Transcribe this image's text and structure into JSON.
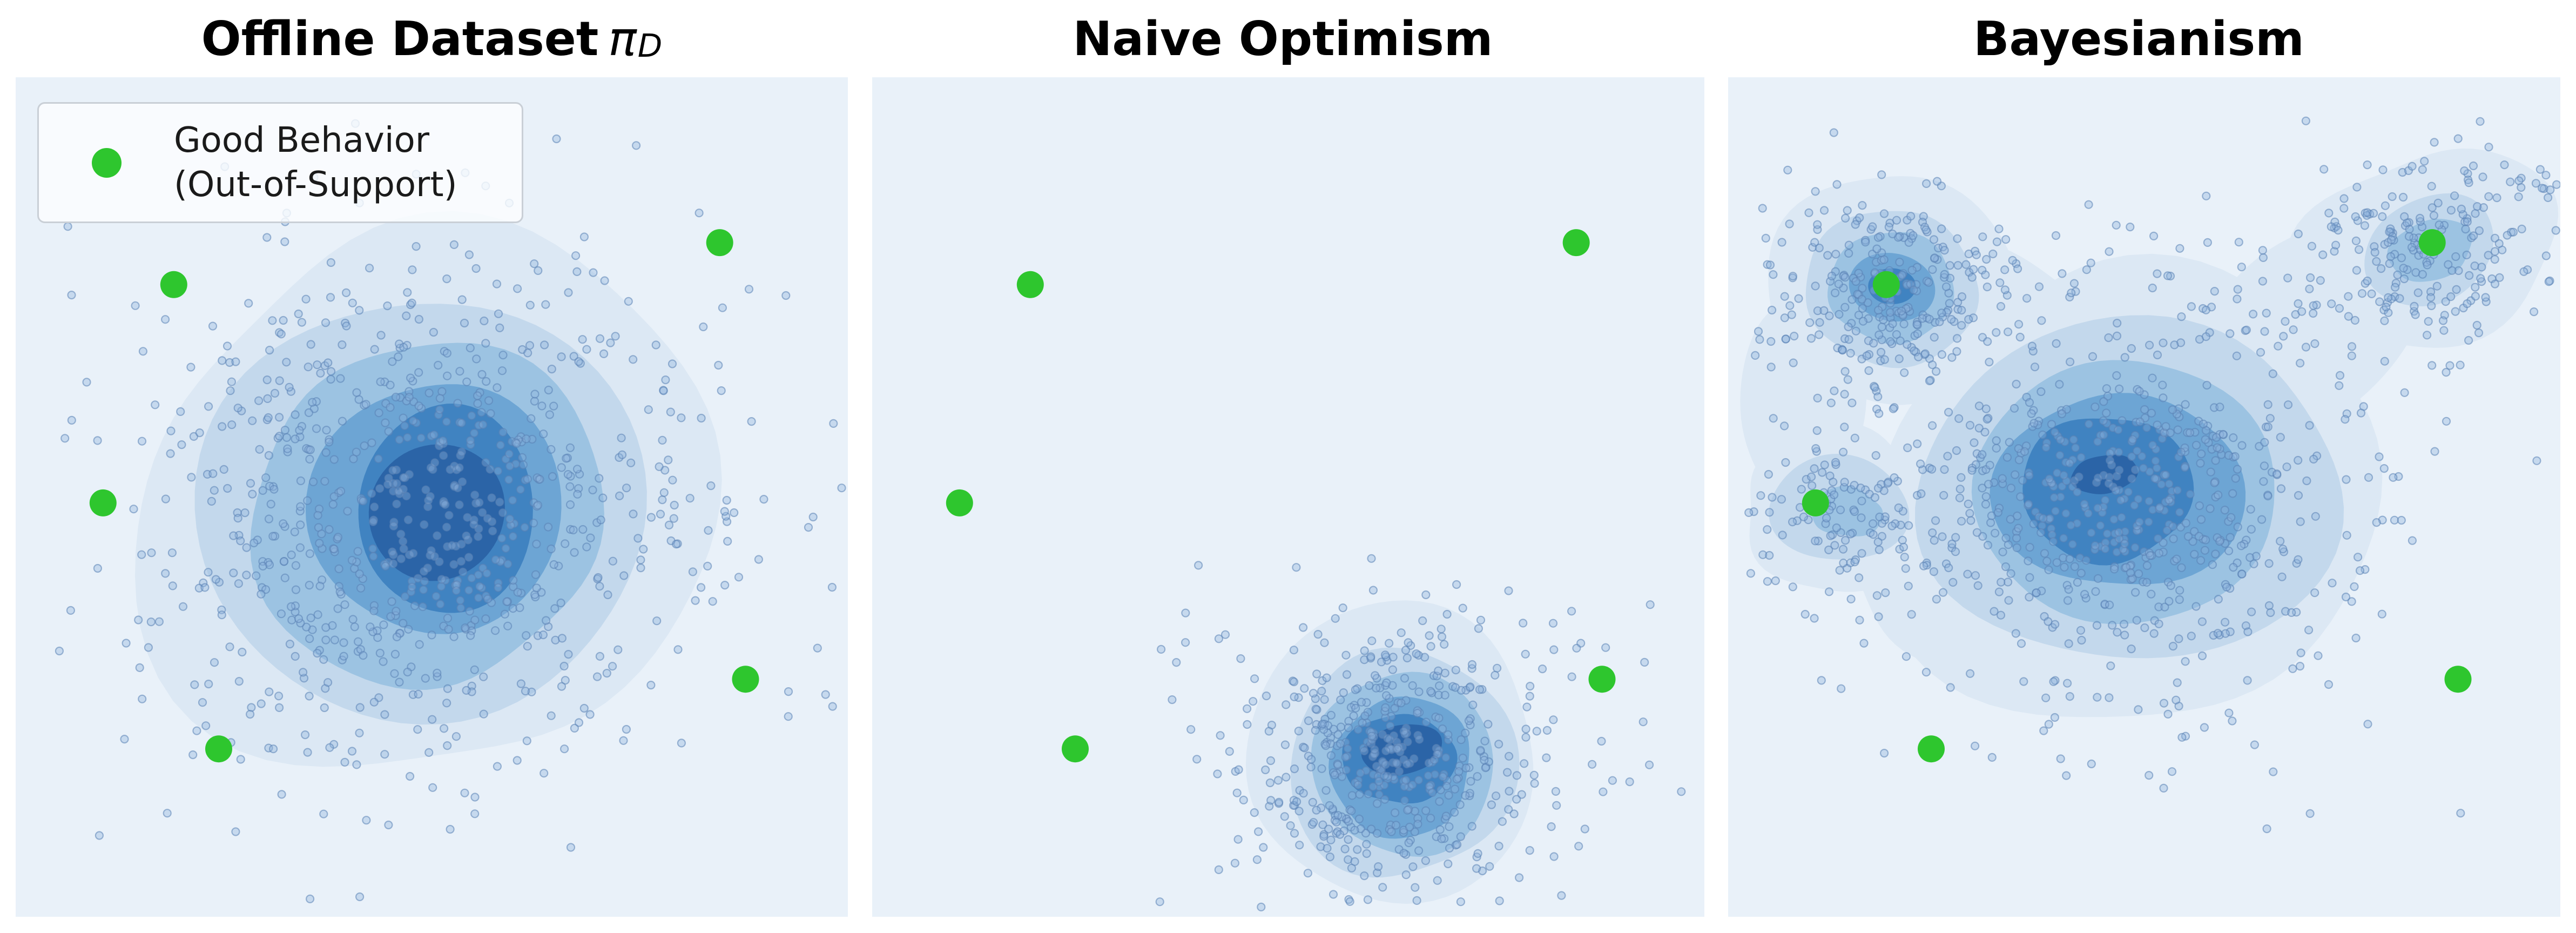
{
  "titles": [
    {
      "text": "Offline Dataset",
      "math": "π",
      "sub": "D"
    },
    {
      "text": "Naive Optimism",
      "math": "",
      "sub": ""
    },
    {
      "text": "Bayesianism",
      "math": "",
      "sub": ""
    }
  ],
  "legend": {
    "line1": "Good Behavior",
    "line2": "(Out-of-Support)",
    "marker_color": "#2ec62e"
  },
  "colors": {
    "figure_bg": "#ffffff",
    "panel_bg": "#e9f1f9",
    "contour_levels": [
      "#dce8f4",
      "#c3d8ec",
      "#9cc3e2",
      "#6da5d4",
      "#4083c1",
      "#2b64a7"
    ],
    "scatter_fill": "#8db4dc",
    "scatter_stroke": "#5a82b4",
    "good_point": "#2ec62e"
  },
  "chart_data": {
    "type": "kde_scatter_panels",
    "coordinates": "normalized 0-1 within each panel, y increases downward",
    "good_points_shared": [
      [
        0.19,
        0.247
      ],
      [
        0.105,
        0.507
      ],
      [
        0.244,
        0.8
      ],
      [
        0.877,
        0.717
      ],
      [
        0.846,
        0.197
      ]
    ],
    "good_point_style": {
      "radius": 25
    },
    "scatter_style": {
      "radius": 7,
      "fill_opacity": 0.38,
      "stroke_opacity": 0.55,
      "stroke_width": 2.2
    },
    "panels": [
      {
        "title": "Offline Dataset π_D",
        "seed": 11,
        "contour_levels": [
          {
            "level": 1,
            "blobs": [
              {
                "cx": 0.493,
                "cy": 0.508,
                "rx": 0.35,
                "ry": 0.322,
                "irr": 0.16
              }
            ]
          },
          {
            "level": 2,
            "blobs": [
              {
                "cx": 0.487,
                "cy": 0.515,
                "rx": 0.272,
                "ry": 0.25,
                "irr": 0.13
              }
            ]
          },
          {
            "level": 3,
            "blobs": [
              {
                "cx": 0.494,
                "cy": 0.52,
                "rx": 0.21,
                "ry": 0.206,
                "irr": 0.11
              }
            ]
          },
          {
            "level": 4,
            "blobs": [
              {
                "cx": 0.505,
                "cy": 0.513,
                "rx": 0.15,
                "ry": 0.152,
                "irr": 0.11
              }
            ]
          },
          {
            "level": 5,
            "blobs": [
              {
                "cx": 0.518,
                "cy": 0.515,
                "rx": 0.108,
                "ry": 0.121,
                "irr": 0.1
              }
            ]
          },
          {
            "level": 6,
            "blobs": [
              {
                "cx": 0.506,
                "cy": 0.518,
                "rx": 0.081,
                "ry": 0.082,
                "irr": 0.1
              }
            ]
          }
        ],
        "scatter_clusters": [
          {
            "n": 780,
            "cx": 0.49,
            "cy": 0.52,
            "sdx": 0.165,
            "sdy": 0.155
          },
          {
            "n": 80,
            "cx": 0.49,
            "cy": 0.5,
            "sdx": 0.3,
            "sdy": 0.28
          }
        ]
      },
      {
        "title": "Naive Optimism",
        "seed": 22,
        "contour_levels": [
          {
            "level": 1,
            "blobs": [
              {
                "cx": 0.625,
                "cy": 0.805,
                "rx": 0.18,
                "ry": 0.172,
                "irr": 0.2
              }
            ]
          },
          {
            "level": 2,
            "blobs": [
              {
                "cx": 0.636,
                "cy": 0.818,
                "rx": 0.134,
                "ry": 0.138,
                "irr": 0.15
              }
            ]
          },
          {
            "level": 3,
            "blobs": [
              {
                "cx": 0.639,
                "cy": 0.818,
                "rx": 0.108,
                "ry": 0.11,
                "irr": 0.13
              }
            ]
          },
          {
            "level": 4,
            "blobs": [
              {
                "cx": 0.636,
                "cy": 0.822,
                "rx": 0.083,
                "ry": 0.085,
                "irr": 0.13
              }
            ]
          },
          {
            "level": 5,
            "blobs": [
              {
                "cx": 0.633,
                "cy": 0.812,
                "rx": 0.066,
                "ry": 0.055,
                "irr": 0.12
              }
            ]
          },
          {
            "level": 6,
            "blobs": [
              {
                "cx": 0.637,
                "cy": 0.801,
                "rx": 0.048,
                "ry": 0.03,
                "irr": 0.14,
                "rot": -10
              }
            ]
          }
        ],
        "scatter_clusters": [
          {
            "n": 430,
            "cx": 0.632,
            "cy": 0.812,
            "sdx": 0.088,
            "sdy": 0.085
          },
          {
            "n": 100,
            "cx": 0.615,
            "cy": 0.8,
            "sdx": 0.175,
            "sdy": 0.115,
            "clip": [
              0.3,
              0.99,
              0.57,
              0.995
            ]
          }
        ]
      },
      {
        "title": "Bayesianism",
        "seed": 33,
        "contour_levels": [
          {
            "level": 1,
            "blobs": [
              {
                "cx": 0.195,
                "cy": 0.25,
                "rx": 0.15,
                "ry": 0.135,
                "irr": 0.18
              },
              {
                "cx": 0.84,
                "cy": 0.205,
                "rx": 0.16,
                "ry": 0.115,
                "rot": -25,
                "irr": 0.18
              },
              {
                "cx": 0.48,
                "cy": 0.5,
                "rx": 0.31,
                "ry": 0.268,
                "irr": 0.13
              },
              {
                "cx": 0.13,
                "cy": 0.515,
                "rx": 0.115,
                "ry": 0.095,
                "irr": 0.18
              },
              {
                "cx": 0.335,
                "cy": 0.325,
                "rx": 0.15,
                "ry": 0.11,
                "rot": 35,
                "irr": 0.14
              },
              {
                "cx": 0.7,
                "cy": 0.3,
                "rx": 0.165,
                "ry": 0.105,
                "rot": -35,
                "irr": 0.14
              },
              {
                "cx": 0.28,
                "cy": 0.6,
                "rx": 0.13,
                "ry": 0.1,
                "rot": 15,
                "irr": 0.14
              },
              {
                "cx": 0.09,
                "cy": 0.385,
                "rx": 0.075,
                "ry": 0.125,
                "irr": 0.18
              }
            ]
          },
          {
            "level": 2,
            "blobs": [
              {
                "cx": 0.196,
                "cy": 0.251,
                "rx": 0.105,
                "ry": 0.092,
                "irr": 0.14
              },
              {
                "cx": 0.843,
                "cy": 0.206,
                "rx": 0.085,
                "ry": 0.06,
                "rot": -20,
                "irr": 0.14
              },
              {
                "cx": 0.133,
                "cy": 0.514,
                "rx": 0.085,
                "ry": 0.062,
                "irr": 0.16
              },
              {
                "cx": 0.483,
                "cy": 0.494,
                "rx": 0.253,
                "ry": 0.206,
                "irr": 0.12
              }
            ]
          },
          {
            "level": 3,
            "blobs": [
              {
                "cx": 0.196,
                "cy": 0.25,
                "rx": 0.076,
                "ry": 0.066,
                "irr": 0.12
              },
              {
                "cx": 0.844,
                "cy": 0.206,
                "rx": 0.051,
                "ry": 0.036,
                "rot": -20,
                "irr": 0.12
              },
              {
                "cx": 0.142,
                "cy": 0.518,
                "rx": 0.044,
                "ry": 0.029,
                "irr": 0.14
              },
              {
                "cx": 0.477,
                "cy": 0.494,
                "rx": 0.182,
                "ry": 0.157,
                "irr": 0.11
              }
            ]
          },
          {
            "level": 4,
            "blobs": [
              {
                "cx": 0.197,
                "cy": 0.25,
                "rx": 0.05,
                "ry": 0.042,
                "irr": 0.11
              },
              {
                "cx": 0.47,
                "cy": 0.494,
                "rx": 0.148,
                "ry": 0.118,
                "irr": 0.11
              }
            ]
          },
          {
            "level": 5,
            "blobs": [
              {
                "cx": 0.197,
                "cy": 0.249,
                "rx": 0.028,
                "ry": 0.022,
                "irr": 0.1
              },
              {
                "cx": 0.455,
                "cy": 0.49,
                "rx": 0.102,
                "ry": 0.088,
                "irr": 0.1
              }
            ]
          },
          {
            "level": 6,
            "blobs": [
              {
                "cx": 0.452,
                "cy": 0.473,
                "rx": 0.04,
                "ry": 0.023,
                "rot": -8,
                "irr": 0.12
              }
            ]
          }
        ],
        "scatter_clusters": [
          {
            "n": 270,
            "cx": 0.197,
            "cy": 0.252,
            "sdx": 0.072,
            "sdy": 0.062
          },
          {
            "n": 240,
            "cx": 0.843,
            "cy": 0.205,
            "sdx": 0.09,
            "sdy": 0.055,
            "rot": -25
          },
          {
            "n": 640,
            "cx": 0.48,
            "cy": 0.5,
            "sdx": 0.15,
            "sdy": 0.12
          },
          {
            "n": 115,
            "cx": 0.135,
            "cy": 0.515,
            "sdx": 0.058,
            "sdy": 0.048
          },
          {
            "n": 80,
            "cx": 0.46,
            "cy": 0.43,
            "sdx": 0.28,
            "sdy": 0.2
          }
        ]
      }
    ]
  }
}
